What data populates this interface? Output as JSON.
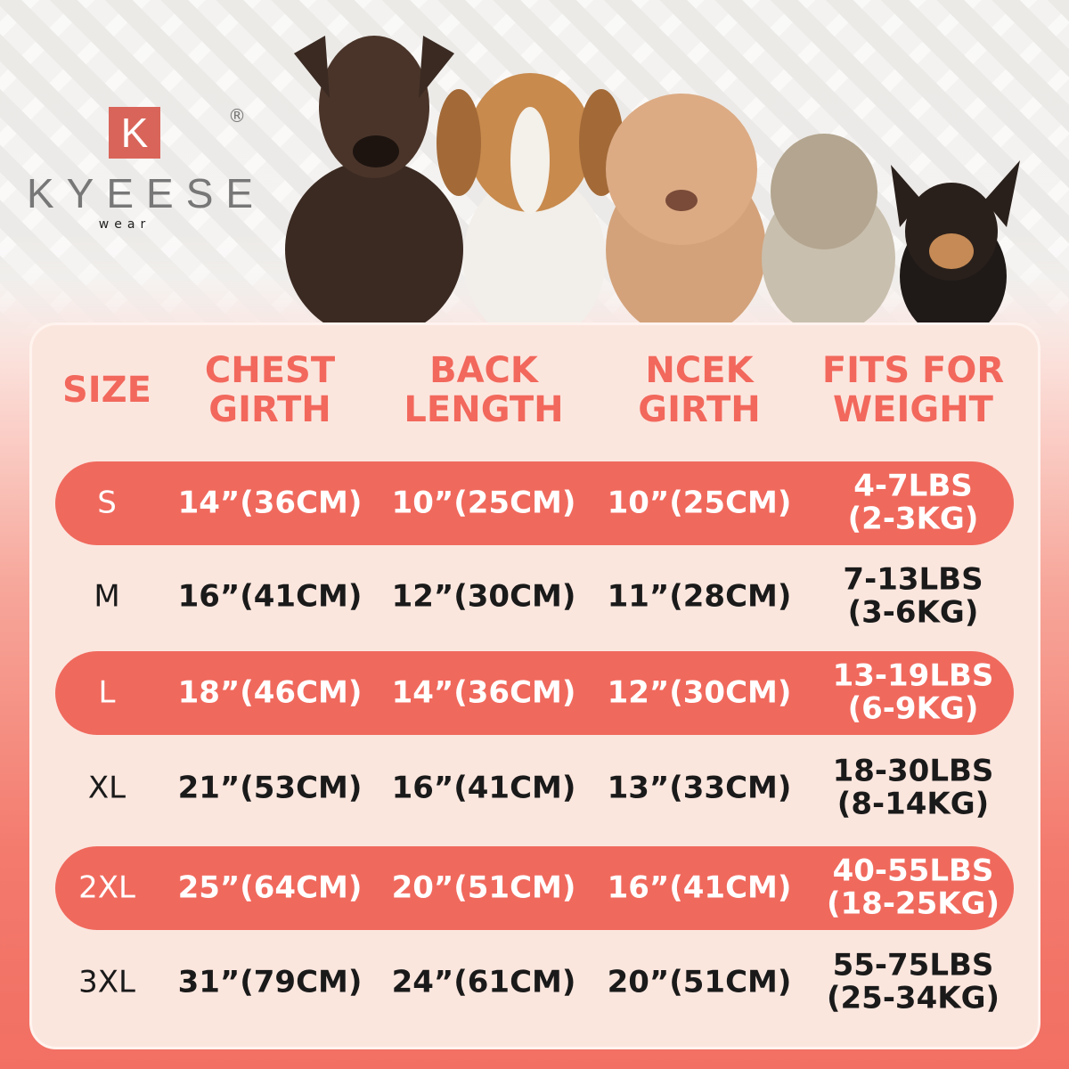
{
  "brand": {
    "logo_letter": "K",
    "name": "KYEESE",
    "sub": "wear",
    "reg": "®"
  },
  "table": {
    "headers": [
      "SIZE",
      "CHEST\nGIRTH",
      "BACK\nLENGTH",
      "NCEK\nGIRTH",
      "FITS FOR\nWEIGHT"
    ],
    "rows": [
      {
        "size": "S",
        "chest": "14”(36CM)",
        "back": "10”(25CM)",
        "neck": "10”(25CM)",
        "weight": "4-7LBS\n(2-3KG)",
        "highlight": true
      },
      {
        "size": "M",
        "chest": "16”(41CM)",
        "back": "12”(30CM)",
        "neck": "11”(28CM)",
        "weight": "7-13LBS\n(3-6KG)",
        "highlight": false
      },
      {
        "size": "L",
        "chest": "18”(46CM)",
        "back": "14”(36CM)",
        "neck": "12”(30CM)",
        "weight": "13-19LBS\n(6-9KG)",
        "highlight": true
      },
      {
        "size": "XL",
        "chest": "21”(53CM)",
        "back": "16”(41CM)",
        "neck": "13”(33CM)",
        "weight": "18-30LBS\n(8-14KG)",
        "highlight": false
      },
      {
        "size": "2XL",
        "chest": "25”(64CM)",
        "back": "20”(51CM)",
        "neck": "16”(41CM)",
        "weight": "40-55LBS\n(18-25KG)",
        "highlight": true
      },
      {
        "size": "3XL",
        "chest": "31”(79CM)",
        "back": "24”(61CM)",
        "neck": "20”(51CM)",
        "weight": "55-75LBS\n(25-34KG)",
        "highlight": false
      }
    ]
  },
  "colors": {
    "accent": "#f0695d",
    "panel": "#fbe6de",
    "text": "#1a1a1a"
  }
}
